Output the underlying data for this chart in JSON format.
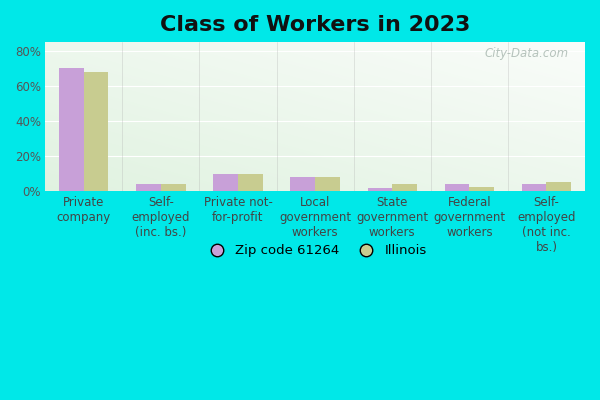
{
  "title": "Class of Workers in 2023",
  "categories": [
    "Private\ncompany",
    "Self-\nemployed\n(inc. bs.)",
    "Private not-\nfor-profit",
    "Local\ngovernment\nworkers",
    "State\ngovernment\nworkers",
    "Federal\ngovernment\nworkers",
    "Self-\nemployed\n(not inc.\nbs.)"
  ],
  "zip_values": [
    70.5,
    4.0,
    10.0,
    8.5,
    2.0,
    4.0,
    4.0
  ],
  "il_values": [
    68.0,
    4.5,
    10.0,
    8.5,
    4.0,
    2.5,
    5.5
  ],
  "zip_color": "#c8a0d8",
  "il_color": "#c8cc90",
  "background_color": "#00e8e8",
  "ylim": [
    0,
    85
  ],
  "yticks": [
    0,
    20,
    40,
    60,
    80
  ],
  "ytick_labels": [
    "0%",
    "20%",
    "40%",
    "60%",
    "80%"
  ],
  "legend_zip_label": "Zip code 61264",
  "legend_il_label": "Illinois",
  "watermark": "City-Data.com",
  "title_fontsize": 16,
  "tick_fontsize": 8.5,
  "legend_fontsize": 9.5
}
